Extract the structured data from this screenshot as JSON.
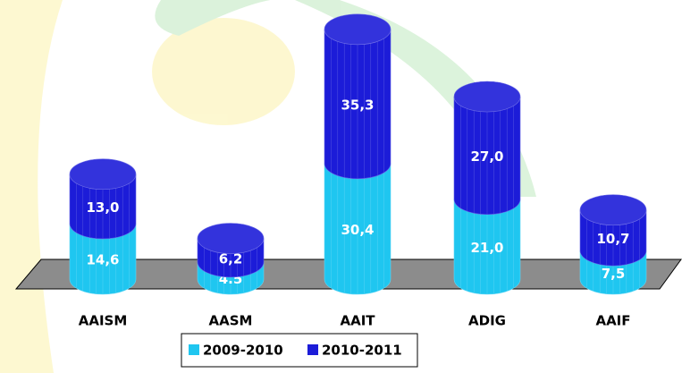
{
  "chart_data": {
    "type": "bar",
    "categories": [
      "AAISM",
      "AASM",
      "AAIT",
      "ADIG",
      "AAIF"
    ],
    "series": [
      {
        "name": "2009-2010",
        "color": "#1fc6f0",
        "values": [
          14.6,
          4.5,
          30.4,
          21.0,
          7.5
        ],
        "value_labels": [
          "14,6",
          "4.5",
          "30,4",
          "21,0",
          "7,5"
        ]
      },
      {
        "name": "2010-2011",
        "color": "#1c1cd8",
        "values": [
          13.0,
          6.2,
          35.3,
          27.0,
          10.7
        ],
        "value_labels": [
          "13,0",
          "6,2",
          "35,3",
          "27,0",
          "10,7"
        ]
      }
    ],
    "stacked": true
  }
}
